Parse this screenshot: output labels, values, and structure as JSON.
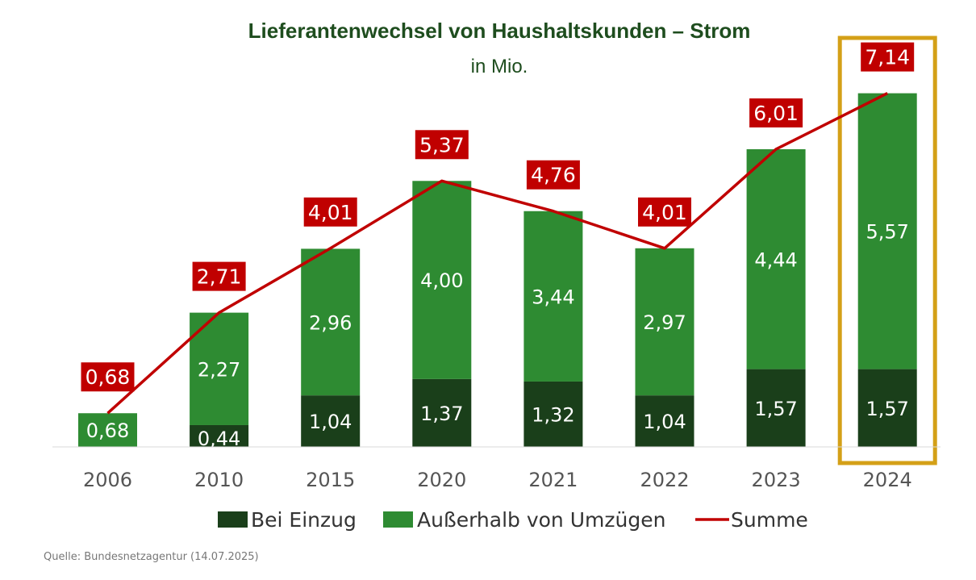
{
  "chart_data": {
    "type": "bar",
    "stacked": true,
    "title": "Lieferantenwechsel von Haushaltskunden – Strom",
    "subtitle": "in Mio.",
    "categories": [
      "2006",
      "2010",
      "2015",
      "2020",
      "2021",
      "2022",
      "2023",
      "2024"
    ],
    "series": [
      {
        "name": "Bei Einzug",
        "type": "bar",
        "color": "#1a3f1a",
        "values": [
          0,
          0.44,
          1.04,
          1.37,
          1.32,
          1.04,
          1.57,
          1.57
        ],
        "labels": [
          "",
          "0,44",
          "1,04",
          "1,37",
          "1,32",
          "1,04",
          "1,57",
          "1,57"
        ]
      },
      {
        "name": "Außerhalb von Umzügen",
        "type": "bar",
        "color": "#2e8b32",
        "values": [
          0.68,
          2.27,
          2.96,
          4.0,
          3.44,
          2.97,
          4.44,
          5.57
        ],
        "labels": [
          "0,68",
          "2,27",
          "2,96",
          "4,00",
          "3,44",
          "2,97",
          "4,44",
          "5,57"
        ]
      },
      {
        "name": "Summe",
        "type": "line",
        "color": "#c00000",
        "values": [
          0.68,
          2.71,
          4.01,
          5.37,
          4.76,
          4.01,
          6.01,
          7.14
        ],
        "labels": [
          "0,68",
          "2,71",
          "4,01",
          "5,37",
          "4,76",
          "4,01",
          "6,01",
          "7,14"
        ]
      }
    ],
    "highlight_category": "2024",
    "highlight_color": "#d4a017",
    "legend_position": "bottom",
    "grid": false,
    "ylim": [
      0,
      7.3
    ]
  },
  "source": "Quelle: Bundesnetzagentur (14.07.2025)"
}
